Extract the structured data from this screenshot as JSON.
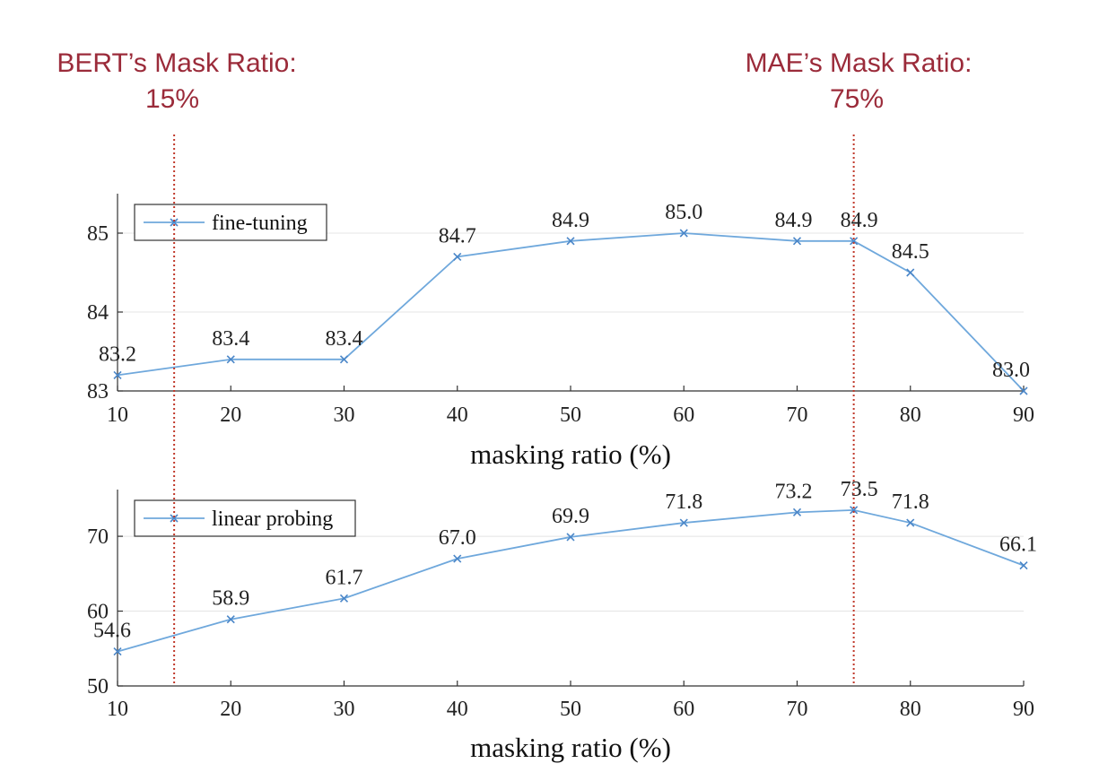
{
  "annotations": {
    "bert": {
      "line1": "BERT’s Mask Ratio:",
      "line2": "15%",
      "x": 15,
      "color": "#9b2b3a"
    },
    "mae": {
      "line1": "MAE’s Mask Ratio:",
      "line2": "75%",
      "x": 75,
      "color": "#9b2b3a"
    }
  },
  "colors": {
    "series": "#6fa8dc",
    "reference_line": "#c0392b"
  },
  "chart_data": [
    {
      "type": "line",
      "xlabel": "masking ratio (%)",
      "ylabel": "",
      "xlim": [
        10,
        90
      ],
      "ylim": [
        83,
        85.5
      ],
      "xticks": [
        "10",
        "20",
        "30",
        "40",
        "50",
        "60",
        "70",
        "80",
        "90"
      ],
      "yticks": [
        "83",
        "84",
        "85"
      ],
      "grid": "horizontal",
      "legend": "top-left",
      "series": [
        {
          "name": "fine-tuning",
          "x": [
            10,
            20,
            30,
            40,
            50,
            60,
            70,
            75,
            80,
            90
          ],
          "y": [
            83.2,
            83.4,
            83.4,
            84.7,
            84.9,
            85.0,
            84.9,
            84.9,
            84.5,
            83.0
          ],
          "labels": [
            "83.2",
            "83.4",
            "83.4",
            "84.7",
            "84.9",
            "85.0",
            "84.9",
            "84.9",
            "84.5",
            "83.0"
          ]
        }
      ]
    },
    {
      "type": "line",
      "xlabel": "masking ratio (%)",
      "ylabel": "",
      "xlim": [
        10,
        90
      ],
      "ylim": [
        50,
        76
      ],
      "xticks": [
        "10",
        "20",
        "30",
        "40",
        "50",
        "60",
        "70",
        "80",
        "90"
      ],
      "yticks": [
        "50",
        "60",
        "70"
      ],
      "grid": "horizontal",
      "legend": "top-left",
      "series": [
        {
          "name": "linear probing",
          "x": [
            10,
            20,
            30,
            40,
            50,
            60,
            70,
            75,
            80,
            90
          ],
          "y": [
            54.6,
            58.9,
            61.7,
            67.0,
            69.9,
            71.8,
            73.2,
            73.5,
            71.8,
            66.1
          ],
          "labels": [
            "54.6",
            "58.9",
            "61.7",
            "67.0",
            "69.9",
            "71.8",
            "73.2",
            "73.5",
            "71.8",
            "66.1"
          ]
        }
      ]
    }
  ]
}
